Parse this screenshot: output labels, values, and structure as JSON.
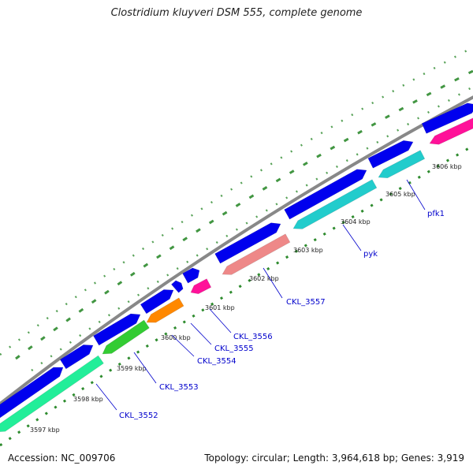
{
  "title": "Clostridium kluyveri DSM 555, complete genome",
  "footer": {
    "accession": "Accession: NC_009706",
    "summary": "Topology: circular; Length: 3,964,618 bp; Genes: 3,919"
  },
  "colors": {
    "backbone": "#888888",
    "forward_cds": "#0000ee",
    "tick": "#2e8b2e",
    "label_line": "#0000cc"
  },
  "kbp_labels": [
    "3597 kbp",
    "3598 kbp",
    "3599 kbp",
    "3600 kbp",
    "3601 kbp",
    "3602 kbp",
    "3603 kbp",
    "3604 kbp",
    "3605 kbp",
    "3606 kbp"
  ],
  "gene_labels": [
    "CKL_3552",
    "CKL_3553",
    "CKL_3554",
    "CKL_3555",
    "CKL_3556",
    "CKL_3557",
    "pyk",
    "pfk1"
  ],
  "reverse_feature_colors": [
    "#22ee99",
    "#33cc33",
    "#ff8800",
    "#ff1199",
    "#ee8888",
    "#22cccc",
    "#22cccc",
    "#ff1199"
  ]
}
